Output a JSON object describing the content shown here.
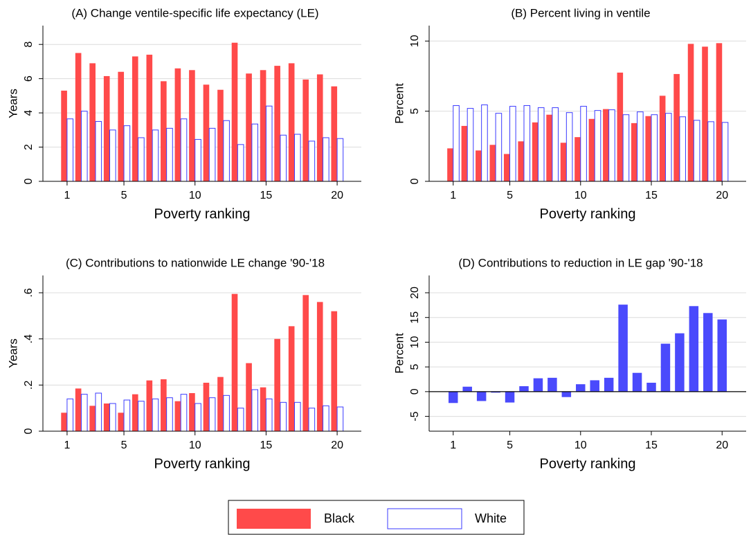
{
  "chart_data": [
    {
      "type": "bar",
      "title": "(A) Change ventile-specific life expectancy (LE)",
      "ylabel": "Years",
      "xlabel": "Poverty ranking",
      "x": [
        1,
        2,
        3,
        4,
        5,
        6,
        7,
        8,
        9,
        10,
        11,
        12,
        13,
        14,
        15,
        16,
        17,
        18,
        19,
        20
      ],
      "series": [
        {
          "color": "#ff4a4a",
          "hollow": false,
          "values": [
            5.3,
            7.5,
            6.9,
            6.15,
            6.4,
            7.3,
            7.4,
            5.85,
            6.6,
            6.5,
            5.65,
            5.35,
            8.1,
            6.3,
            6.5,
            6.75,
            6.9,
            5.95,
            6.25,
            5.55
          ]
        },
        {
          "color": "#3a3aff",
          "hollow": true,
          "values": [
            3.65,
            4.1,
            3.5,
            3.0,
            3.25,
            2.55,
            3.0,
            3.1,
            3.65,
            2.45,
            3.1,
            3.55,
            2.15,
            3.35,
            4.4,
            2.7,
            2.75,
            2.35,
            2.55,
            2.5
          ]
        }
      ],
      "xlim": [
        -0.7,
        21.7
      ],
      "xticks": [
        1,
        5,
        10,
        15,
        20
      ],
      "ylim": [
        0,
        9.1
      ],
      "yticks": [
        0,
        2,
        4,
        6,
        8
      ],
      "grid": true,
      "zero_line": false
    },
    {
      "type": "bar",
      "title": "(B) Percent living in ventile",
      "ylabel": "Percent",
      "xlabel": "Poverty ranking",
      "x": [
        1,
        2,
        3,
        4,
        5,
        6,
        7,
        8,
        9,
        10,
        11,
        12,
        13,
        14,
        15,
        16,
        17,
        18,
        19,
        20
      ],
      "series": [
        {
          "color": "#ff4a4a",
          "hollow": false,
          "values": [
            2.35,
            3.95,
            2.2,
            2.6,
            1.95,
            2.85,
            4.2,
            4.75,
            2.75,
            3.15,
            4.45,
            5.15,
            7.75,
            4.15,
            4.65,
            6.1,
            7.65,
            9.8,
            9.6,
            9.85
          ]
        },
        {
          "color": "#3a3aff",
          "hollow": true,
          "values": [
            5.4,
            5.2,
            5.45,
            4.85,
            5.35,
            5.4,
            5.25,
            5.25,
            4.9,
            5.35,
            5.05,
            5.1,
            4.75,
            4.95,
            4.75,
            4.85,
            4.6,
            4.35,
            4.25,
            4.2
          ]
        }
      ],
      "xlim": [
        -0.7,
        21.7
      ],
      "xticks": [
        1,
        5,
        10,
        15,
        20
      ],
      "ylim": [
        0,
        11.1
      ],
      "yticks": [
        0,
        5,
        10
      ],
      "grid": true,
      "zero_line": false
    },
    {
      "type": "bar",
      "title": "(C) Contributions to nationwide LE change '90-'18",
      "ylabel": "Years",
      "xlabel": "Poverty ranking",
      "x": [
        1,
        2,
        3,
        4,
        5,
        6,
        7,
        8,
        9,
        10,
        11,
        12,
        13,
        14,
        15,
        16,
        17,
        18,
        19,
        20
      ],
      "series": [
        {
          "color": "#ff4a4a",
          "hollow": false,
          "values": [
            0.08,
            0.185,
            0.11,
            0.12,
            0.08,
            0.16,
            0.22,
            0.225,
            0.13,
            0.165,
            0.21,
            0.235,
            0.595,
            0.295,
            0.19,
            0.4,
            0.455,
            0.59,
            0.56,
            0.52
          ]
        },
        {
          "color": "#3a3aff",
          "hollow": true,
          "values": [
            0.14,
            0.16,
            0.165,
            0.12,
            0.135,
            0.13,
            0.14,
            0.145,
            0.16,
            0.12,
            0.145,
            0.155,
            0.1,
            0.18,
            0.14,
            0.125,
            0.125,
            0.1,
            0.11,
            0.105
          ]
        }
      ],
      "xlim": [
        -0.7,
        21.7
      ],
      "xticks": [
        1,
        5,
        10,
        15,
        20
      ],
      "ylim": [
        0,
        0.675
      ],
      "yticks": [
        0,
        {
          "value": 0.2,
          "label": ".2"
        },
        {
          "value": 0.4,
          "label": ".4"
        },
        {
          "value": 0.6,
          "label": ".6"
        }
      ],
      "grid": true,
      "zero_line": false
    },
    {
      "type": "bar",
      "title": "(D) Contributions to reduction in LE gap '90-'18",
      "ylabel": "Percent",
      "xlabel": "Poverty ranking",
      "x": [
        1,
        2,
        3,
        4,
        5,
        6,
        7,
        8,
        9,
        10,
        11,
        12,
        13,
        14,
        15,
        16,
        17,
        18,
        19,
        20
      ],
      "series": [
        {
          "color": "#4a4afc",
          "hollow": false,
          "values": [
            -2.3,
            1.0,
            -1.9,
            -0.2,
            -2.2,
            1.1,
            2.7,
            2.8,
            -1.1,
            1.5,
            2.3,
            2.8,
            17.6,
            3.8,
            1.8,
            9.7,
            11.8,
            17.3,
            15.9,
            14.6
          ]
        }
      ],
      "xlim": [
        -0.7,
        21.7
      ],
      "xticks": [
        1,
        5,
        10,
        15,
        20
      ],
      "ylim": [
        -8,
        23.5
      ],
      "yticks": [
        -5,
        0,
        5,
        10,
        15,
        20
      ],
      "grid": true,
      "zero_line": true
    }
  ],
  "legend": [
    {
      "name": "Black",
      "color": "#ff4a4a",
      "hollow": false
    },
    {
      "name": "White",
      "color": "#3a3aff",
      "hollow": true
    }
  ]
}
